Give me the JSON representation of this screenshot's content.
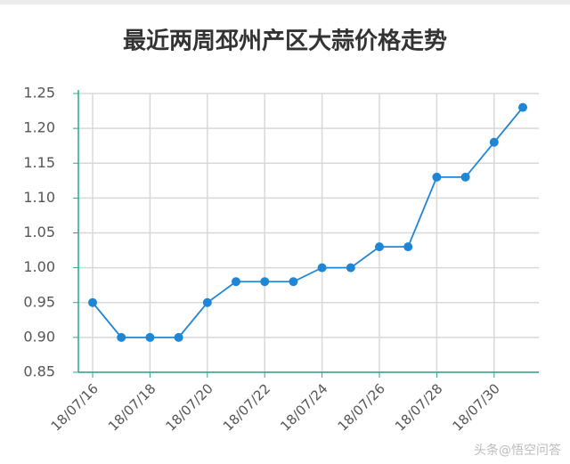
{
  "chart_data": {
    "type": "line",
    "title": "最近两周邳州产区大蒜价格走势",
    "categories": [
      "18/07/16",
      null,
      "18/07/18",
      null,
      "18/07/20",
      null,
      "18/07/22",
      null,
      "18/07/24",
      null,
      "18/07/26",
      null,
      "18/07/28",
      null,
      "18/07/30",
      null
    ],
    "series": [
      {
        "color": "#1f86d6",
        "values": [
          0.95,
          0.9,
          0.9,
          0.9,
          0.95,
          0.98,
          0.98,
          0.98,
          1.0,
          1.0,
          1.03,
          1.03,
          1.13,
          1.13,
          1.18,
          1.23
        ]
      }
    ],
    "ylim": [
      0.85,
      1.25
    ],
    "yticks": [
      0.85,
      {
        "value": 0.9,
        "label": "0.90"
      },
      0.95,
      {
        "value": 1.0,
        "label": "1.00"
      },
      1.05,
      {
        "value": 1.1,
        "label": "1.10"
      },
      1.15,
      {
        "value": 1.2,
        "label": "1.20"
      },
      1.25
    ],
    "grid": true,
    "axis_color": "#2aa88a",
    "watermark": "头条@悟空问答"
  }
}
